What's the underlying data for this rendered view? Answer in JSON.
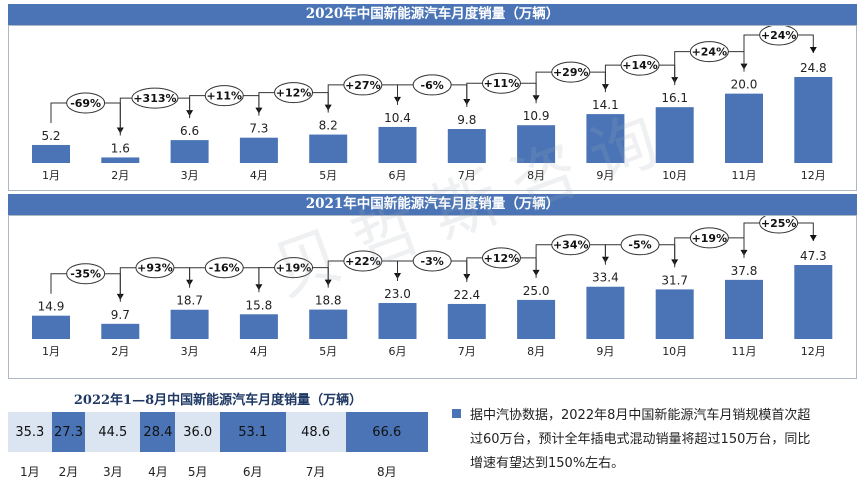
{
  "charts": {
    "c2020": {
      "title": "2020年中国新能源汽车月度销量（万辆）",
      "months": [
        "1月",
        "2月",
        "3月",
        "4月",
        "5月",
        "6月",
        "7月",
        "8月",
        "9月",
        "10月",
        "11月",
        "12月"
      ],
      "values": [
        5.2,
        1.6,
        6.6,
        7.3,
        8.2,
        10.4,
        9.8,
        10.9,
        14.1,
        16.1,
        20.0,
        24.8
      ],
      "labels": [
        "5.2",
        "1.6",
        "6.6",
        "7.3",
        "8.2",
        "10.4",
        "9.8",
        "10.9",
        "14.1",
        "16.1",
        "20.0",
        "24.8"
      ],
      "changes": [
        "-69%",
        "+313%",
        "+11%",
        "+12%",
        "+27%",
        "-6%",
        "+11%",
        "+29%",
        "+14%",
        "+24%",
        "+24%"
      ]
    },
    "c2021": {
      "title": "2021年中国新能源汽车月度销量（万辆）",
      "months": [
        "1月",
        "2月",
        "3月",
        "4月",
        "5月",
        "6月",
        "7月",
        "8月",
        "9月",
        "10月",
        "11月",
        "12月"
      ],
      "values": [
        14.9,
        9.7,
        18.7,
        15.8,
        18.8,
        23.0,
        22.4,
        25.0,
        33.4,
        31.7,
        37.8,
        47.3
      ],
      "labels": [
        "14.9",
        "9.7",
        "18.7",
        "15.8",
        "18.8",
        "23.0",
        "22.4",
        "25.0",
        "33.4",
        "31.7",
        "37.8",
        "47.3"
      ],
      "changes": [
        "-35%",
        "+93%",
        "-16%",
        "+19%",
        "+22%",
        "-3%",
        "+12%",
        "+34%",
        "-5%",
        "+19%",
        "+25%"
      ]
    }
  },
  "chart_data": [
    {
      "type": "bar",
      "title": "2020年中国新能源汽车月度销量（万辆）",
      "categories": [
        "1月",
        "2月",
        "3月",
        "4月",
        "5月",
        "6月",
        "7月",
        "8月",
        "9月",
        "10月",
        "11月",
        "12月"
      ],
      "values": [
        5.2,
        1.6,
        6.6,
        7.3,
        8.2,
        10.4,
        9.8,
        10.9,
        14.1,
        16.1,
        20.0,
        24.8
      ],
      "annotations": [
        "-69%",
        "+313%",
        "+11%",
        "+12%",
        "+27%",
        "-6%",
        "+11%",
        "+29%",
        "+14%",
        "+24%",
        "+24%"
      ]
    },
    {
      "type": "bar",
      "title": "2021年中国新能源汽车月度销量（万辆）",
      "categories": [
        "1月",
        "2月",
        "3月",
        "4月",
        "5月",
        "6月",
        "7月",
        "8月",
        "9月",
        "10月",
        "11月",
        "12月"
      ],
      "values": [
        14.9,
        9.7,
        18.7,
        15.8,
        18.8,
        23.0,
        22.4,
        25.0,
        33.4,
        31.7,
        37.8,
        47.3
      ],
      "annotations": [
        "-35%",
        "+93%",
        "-16%",
        "+19%",
        "+22%",
        "-3%",
        "+12%",
        "+34%",
        "-5%",
        "+19%",
        "+25%"
      ]
    },
    {
      "type": "bar",
      "title": "2022年1—8月中国新能源汽车月度销量（万辆）",
      "categories": [
        "1月",
        "2月",
        "3月",
        "4月",
        "5月",
        "6月",
        "7月",
        "8月"
      ],
      "values": [
        35.3,
        27.3,
        44.5,
        28.4,
        36.0,
        53.1,
        48.6,
        66.6
      ]
    }
  ],
  "bar2022": {
    "title": "2022年1—8月中国新能源汽车月度销量（万辆）",
    "months": [
      "1月",
      "2月",
      "3月",
      "4月",
      "5月",
      "6月",
      "7月",
      "8月"
    ],
    "values": [
      35.3,
      27.3,
      44.5,
      28.4,
      36.0,
      53.1,
      48.6,
      66.6
    ],
    "labels": [
      "35.3",
      "27.3",
      "44.5",
      "28.4",
      "36.0",
      "53.1",
      "48.6",
      "66.6"
    ],
    "colors": [
      "#dbe5f1",
      "#4a74b6",
      "#dbe5f1",
      "#4a74b6",
      "#dbe5f1",
      "#4a74b6",
      "#dbe5f1",
      "#4a74b6"
    ]
  },
  "note": {
    "line1": "据中汽协数据，2022年8月中国新能源汽车月销规模首次超",
    "line2": "过60万台，预计全年插电式混动销量将超过150万台，同比",
    "line3": "增速有望达到150%左右。"
  },
  "watermark": "贝哲斯咨询",
  "colors": {
    "bar": "#4a74b6",
    "banner": "#4a74b6",
    "light": "#dbe5f1"
  }
}
